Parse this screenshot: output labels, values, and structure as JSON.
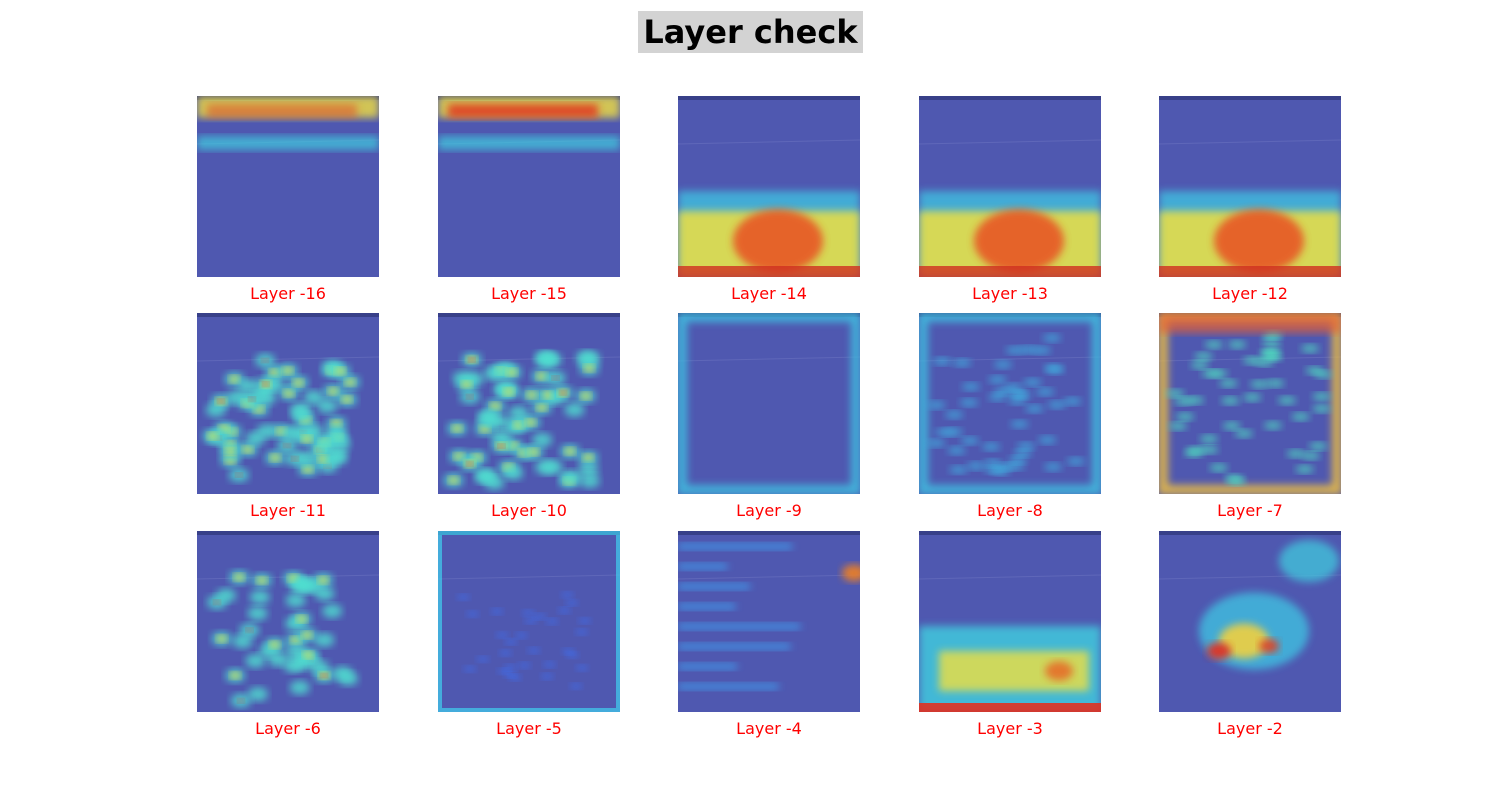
{
  "title": "Layer check",
  "colors": {
    "caption": "#ff0000",
    "title_bg": "#d3d3d3",
    "base_overlay": "#4f58b0"
  },
  "panels": [
    {
      "label": "Layer -16",
      "pattern": "top-band"
    },
    {
      "label": "Layer -15",
      "pattern": "top-band-strong"
    },
    {
      "label": "Layer -14",
      "pattern": "bottom-blob"
    },
    {
      "label": "Layer -13",
      "pattern": "bottom-blob"
    },
    {
      "label": "Layer -12",
      "pattern": "bottom-blob"
    },
    {
      "label": "Layer -11",
      "pattern": "dots"
    },
    {
      "label": "Layer -10",
      "pattern": "dots"
    },
    {
      "label": "Layer -9",
      "pattern": "frame"
    },
    {
      "label": "Layer -8",
      "pattern": "frame-speckle"
    },
    {
      "label": "Layer -7",
      "pattern": "frame-hot"
    },
    {
      "label": "Layer -6",
      "pattern": "dots-sparse"
    },
    {
      "label": "Layer -5",
      "pattern": "faint"
    },
    {
      "label": "Layer -4",
      "pattern": "streaks"
    },
    {
      "label": "Layer -3",
      "pattern": "bottom-band"
    },
    {
      "label": "Layer -2",
      "pattern": "central-blob"
    }
  ]
}
